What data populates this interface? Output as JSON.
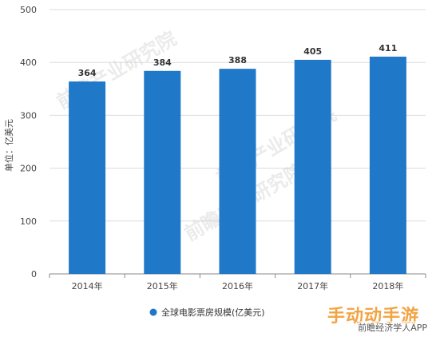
{
  "chart_data": {
    "type": "bar",
    "categories": [
      "2014年",
      "2015年",
      "2016年",
      "2017年",
      "2018年"
    ],
    "series": [
      {
        "name": "全球电影票房规模(亿美元)",
        "values": [
          364,
          384,
          388,
          405,
          411
        ],
        "color": "#1f78c8"
      }
    ],
    "ylabel": "单位：亿美元",
    "ylim": [
      0,
      500
    ],
    "yticks": [
      0,
      100,
      200,
      300,
      400,
      500
    ],
    "grid": true,
    "legend_position": "bottom-center",
    "data_labels": true
  },
  "watermarks": {
    "overlay_text": "前瞻产业研究院",
    "overlay_color": "#c8c8c8",
    "corner_brand": "手动动手游",
    "corner_caption": "前瞻经济学人APP"
  }
}
